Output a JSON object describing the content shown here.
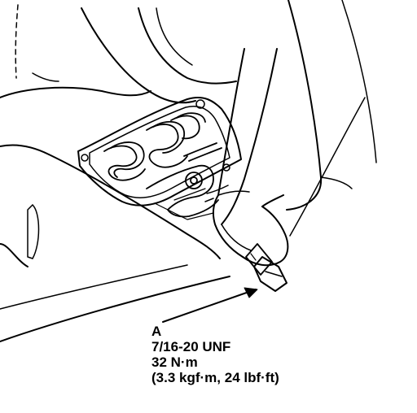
{
  "callout": {
    "letter": "A",
    "thread": "7/16-20 UNF",
    "torque_nm": "32 N·m",
    "torque_alt": "(3.3 kgf·m, 24 lbf·ft)"
  },
  "colors": {
    "ink": "#000000",
    "paper": "#ffffff"
  }
}
